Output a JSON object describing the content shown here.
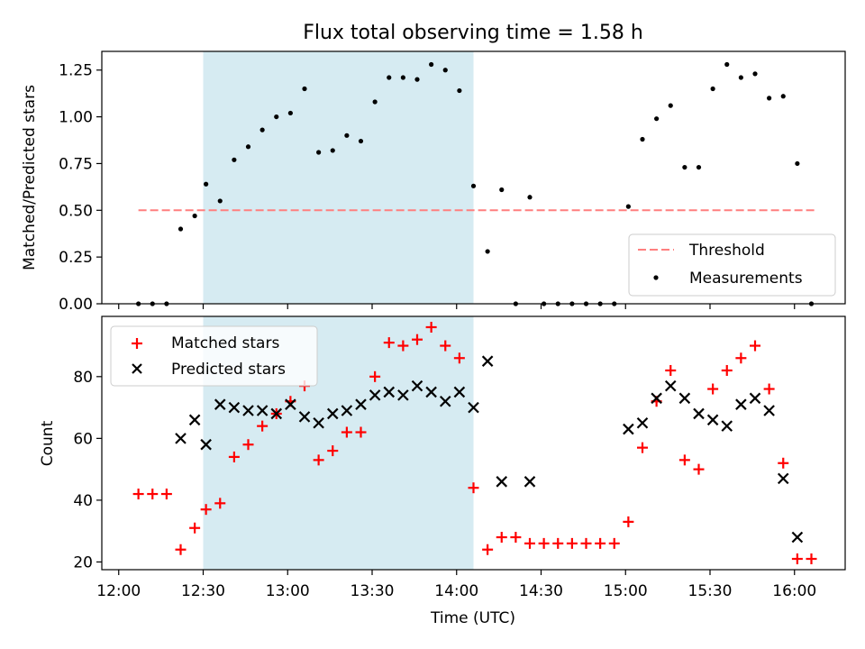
{
  "figure": {
    "title": "Flux total observing time = 1.58 h",
    "xlabel": "Time (UTC)",
    "x_ticks": [
      "12:00",
      "12:30",
      "13:00",
      "13:30",
      "14:00",
      "14:30",
      "15:00",
      "15:30",
      "16:00"
    ],
    "colors": {
      "shade": "#add8e6",
      "threshold": "#ff7f7f",
      "measurement": "#000000",
      "matched": "#ff0000",
      "predicted": "#000000"
    }
  },
  "chart_data": [
    {
      "type": "scatter",
      "ylabel": "Matched/Predicted stars",
      "xlim": [
        "11:54",
        "16:18"
      ],
      "ylim": [
        0,
        1.35
      ],
      "y_ticks": [
        "0.00",
        "0.25",
        "0.50",
        "0.75",
        "1.00",
        "1.25"
      ],
      "shaded_interval": [
        "12:30",
        "14:06"
      ],
      "threshold": {
        "label": "Threshold",
        "value": 0.5,
        "x_range": [
          "12:07",
          "16:07"
        ],
        "style": "dashed"
      },
      "legend": {
        "position": "lower right",
        "entries": [
          "Threshold",
          "Measurements"
        ]
      },
      "measurements": {
        "name": "Measurements",
        "points": [
          [
            "12:07",
            0.0
          ],
          [
            "12:12",
            0.0
          ],
          [
            "12:17",
            0.0
          ],
          [
            "12:22",
            0.4
          ],
          [
            "12:27",
            0.47
          ],
          [
            "12:31",
            0.64
          ],
          [
            "12:36",
            0.55
          ],
          [
            "12:41",
            0.77
          ],
          [
            "12:46",
            0.84
          ],
          [
            "12:51",
            0.93
          ],
          [
            "12:56",
            1.0
          ],
          [
            "13:01",
            1.02
          ],
          [
            "13:06",
            1.15
          ],
          [
            "13:11",
            0.81
          ],
          [
            "13:16",
            0.82
          ],
          [
            "13:21",
            0.9
          ],
          [
            "13:26",
            0.87
          ],
          [
            "13:31",
            1.08
          ],
          [
            "13:36",
            1.21
          ],
          [
            "13:41",
            1.21
          ],
          [
            "13:46",
            1.2
          ],
          [
            "13:51",
            1.28
          ],
          [
            "13:56",
            1.25
          ],
          [
            "14:01",
            1.14
          ],
          [
            "14:06",
            0.63
          ],
          [
            "14:11",
            0.28
          ],
          [
            "14:16",
            0.61
          ],
          [
            "14:21",
            0.0
          ],
          [
            "14:26",
            0.57
          ],
          [
            "14:31",
            0.0
          ],
          [
            "14:36",
            0.0
          ],
          [
            "14:41",
            0.0
          ],
          [
            "14:46",
            0.0
          ],
          [
            "14:51",
            0.0
          ],
          [
            "14:56",
            0.0
          ],
          [
            "15:01",
            0.52
          ],
          [
            "15:06",
            0.88
          ],
          [
            "15:11",
            0.99
          ],
          [
            "15:16",
            1.06
          ],
          [
            "15:21",
            0.73
          ],
          [
            "15:26",
            0.73
          ],
          [
            "15:31",
            1.15
          ],
          [
            "15:36",
            1.28
          ],
          [
            "15:41",
            1.21
          ],
          [
            "15:46",
            1.23
          ],
          [
            "15:51",
            1.1
          ],
          [
            "15:56",
            1.11
          ],
          [
            "16:01",
            0.75
          ],
          [
            "16:06",
            0.0
          ]
        ]
      }
    },
    {
      "type": "scatter",
      "ylabel": "Count",
      "xlim": [
        "11:54",
        "16:18"
      ],
      "ylim": [
        17.5,
        99.5
      ],
      "y_ticks": [
        "20",
        "40",
        "60",
        "80"
      ],
      "shaded_interval": [
        "12:30",
        "14:06"
      ],
      "legend": {
        "position": "upper left",
        "entries": [
          "Matched stars",
          "Predicted stars"
        ]
      },
      "series": [
        {
          "name": "Matched stars",
          "marker": "plus",
          "points": [
            [
              "12:07",
              42
            ],
            [
              "12:12",
              42
            ],
            [
              "12:17",
              42
            ],
            [
              "12:22",
              24
            ],
            [
              "12:27",
              31
            ],
            [
              "12:31",
              37
            ],
            [
              "12:36",
              39
            ],
            [
              "12:41",
              54
            ],
            [
              "12:46",
              58
            ],
            [
              "12:51",
              64
            ],
            [
              "12:56",
              68
            ],
            [
              "13:01",
              72
            ],
            [
              "13:06",
              77
            ],
            [
              "13:11",
              53
            ],
            [
              "13:16",
              56
            ],
            [
              "13:21",
              62
            ],
            [
              "13:26",
              62
            ],
            [
              "13:31",
              80
            ],
            [
              "13:36",
              91
            ],
            [
              "13:41",
              90
            ],
            [
              "13:46",
              92
            ],
            [
              "13:51",
              96
            ],
            [
              "13:56",
              90
            ],
            [
              "14:01",
              86
            ],
            [
              "14:06",
              44
            ],
            [
              "14:11",
              24
            ],
            [
              "14:16",
              28
            ],
            [
              "14:21",
              28
            ],
            [
              "14:26",
              26
            ],
            [
              "14:31",
              26
            ],
            [
              "14:36",
              26
            ],
            [
              "14:41",
              26
            ],
            [
              "14:46",
              26
            ],
            [
              "14:51",
              26
            ],
            [
              "14:56",
              26
            ],
            [
              "15:01",
              33
            ],
            [
              "15:06",
              57
            ],
            [
              "15:11",
              72
            ],
            [
              "15:16",
              82
            ],
            [
              "15:21",
              53
            ],
            [
              "15:26",
              50
            ],
            [
              "15:31",
              76
            ],
            [
              "15:36",
              82
            ],
            [
              "15:41",
              86
            ],
            [
              "15:46",
              90
            ],
            [
              "15:56",
              52
            ],
            [
              "15:51",
              76
            ],
            [
              "16:01",
              21
            ],
            [
              "16:06",
              21
            ]
          ]
        },
        {
          "name": "Predicted stars",
          "marker": "x",
          "points": [
            [
              "12:22",
              60
            ],
            [
              "12:27",
              66
            ],
            [
              "12:31",
              58
            ],
            [
              "12:36",
              71
            ],
            [
              "12:41",
              70
            ],
            [
              "12:46",
              69
            ],
            [
              "12:51",
              69
            ],
            [
              "12:56",
              68
            ],
            [
              "13:01",
              71
            ],
            [
              "13:06",
              67
            ],
            [
              "13:11",
              65
            ],
            [
              "13:16",
              68
            ],
            [
              "13:21",
              69
            ],
            [
              "13:26",
              71
            ],
            [
              "13:31",
              74
            ],
            [
              "13:36",
              75
            ],
            [
              "13:41",
              74
            ],
            [
              "13:46",
              77
            ],
            [
              "13:51",
              75
            ],
            [
              "13:56",
              72
            ],
            [
              "14:01",
              75
            ],
            [
              "14:06",
              70
            ],
            [
              "14:11",
              85
            ],
            [
              "14:16",
              46
            ],
            [
              "14:26",
              46
            ],
            [
              "15:01",
              63
            ],
            [
              "15:06",
              65
            ],
            [
              "15:11",
              73
            ],
            [
              "15:16",
              77
            ],
            [
              "15:21",
              73
            ],
            [
              "15:26",
              68
            ],
            [
              "15:31",
              66
            ],
            [
              "15:36",
              64
            ],
            [
              "15:41",
              71
            ],
            [
              "15:46",
              73
            ],
            [
              "15:51",
              69
            ],
            [
              "15:56",
              47
            ],
            [
              "16:01",
              28
            ]
          ]
        }
      ]
    }
  ]
}
